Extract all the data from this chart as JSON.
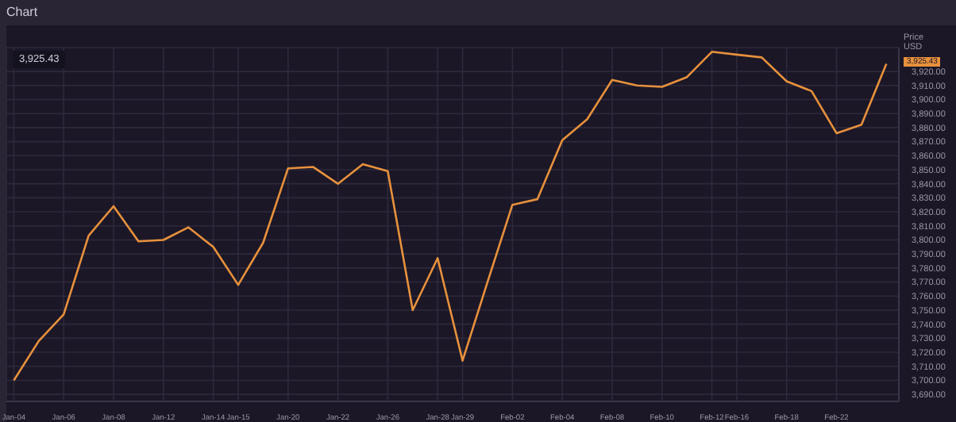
{
  "chart_data": {
    "type": "line",
    "title": "Chart",
    "ylabel": "Price USD",
    "categories": [
      "Jan-04",
      null,
      "Jan-06",
      null,
      "Jan-08",
      null,
      "Jan-12",
      null,
      "Jan-14",
      "Jan-15",
      null,
      "Jan-20",
      null,
      "Jan-22",
      null,
      "Jan-26",
      null,
      "Jan-28",
      "Jan-29",
      null,
      "Feb-02",
      null,
      "Feb-04",
      null,
      "Feb-08",
      null,
      "Feb-10",
      null,
      "Feb-12",
      "Feb-16",
      null,
      "Feb-18",
      null,
      "Feb-22",
      null,
      null
    ],
    "series": [
      {
        "color": "#e8913c",
        "values": [
          3700,
          3728,
          3747,
          3803,
          3824,
          3799,
          3800,
          3809,
          3795,
          3768,
          3798,
          3851,
          3852,
          3840,
          3854,
          3849,
          3750,
          3787,
          3714,
          3770,
          3825,
          3829,
          3871,
          3886,
          3914,
          3910,
          3909,
          3916,
          3934,
          3932,
          3930,
          3913,
          3906,
          3876,
          3882,
          3925.43
        ]
      }
    ],
    "ylim": [
      3685,
      3937
    ],
    "yticks": [
      {
        "value": 3690,
        "label": "3,690.00"
      },
      {
        "value": 3700,
        "label": "3,700.00"
      },
      {
        "value": 3710,
        "label": "3,710.00"
      },
      {
        "value": 3720,
        "label": "3,720.00"
      },
      {
        "value": 3730,
        "label": "3,730.00"
      },
      {
        "value": 3740,
        "label": "3,740.00"
      },
      {
        "value": 3750,
        "label": "3,750.00"
      },
      {
        "value": 3760,
        "label": "3,760.00"
      },
      {
        "value": 3770,
        "label": "3,770.00"
      },
      {
        "value": 3780,
        "label": "3,780.00"
      },
      {
        "value": 3790,
        "label": "3,790.00"
      },
      {
        "value": 3800,
        "label": "3,800.00"
      },
      {
        "value": 3810,
        "label": "3,810.00"
      },
      {
        "value": 3820,
        "label": "3,820.00"
      },
      {
        "value": 3830,
        "label": "3,830.00"
      },
      {
        "value": 3840,
        "label": "3,840.00"
      },
      {
        "value": 3850,
        "label": "3,850.00"
      },
      {
        "value": 3860,
        "label": "3,860.00"
      },
      {
        "value": 3870,
        "label": "3,870.00"
      },
      {
        "value": 3880,
        "label": "3,880.00"
      },
      {
        "value": 3890,
        "label": "3,890.00"
      },
      {
        "value": 3900,
        "label": "3,900.00"
      },
      {
        "value": 3910,
        "label": "3,910.00"
      },
      {
        "value": 3920,
        "label": "3,920.00"
      }
    ],
    "grid": true,
    "marker": "none",
    "line_style": "solid",
    "annotations": [
      "3,925.43",
      "3,925.43"
    ]
  }
}
